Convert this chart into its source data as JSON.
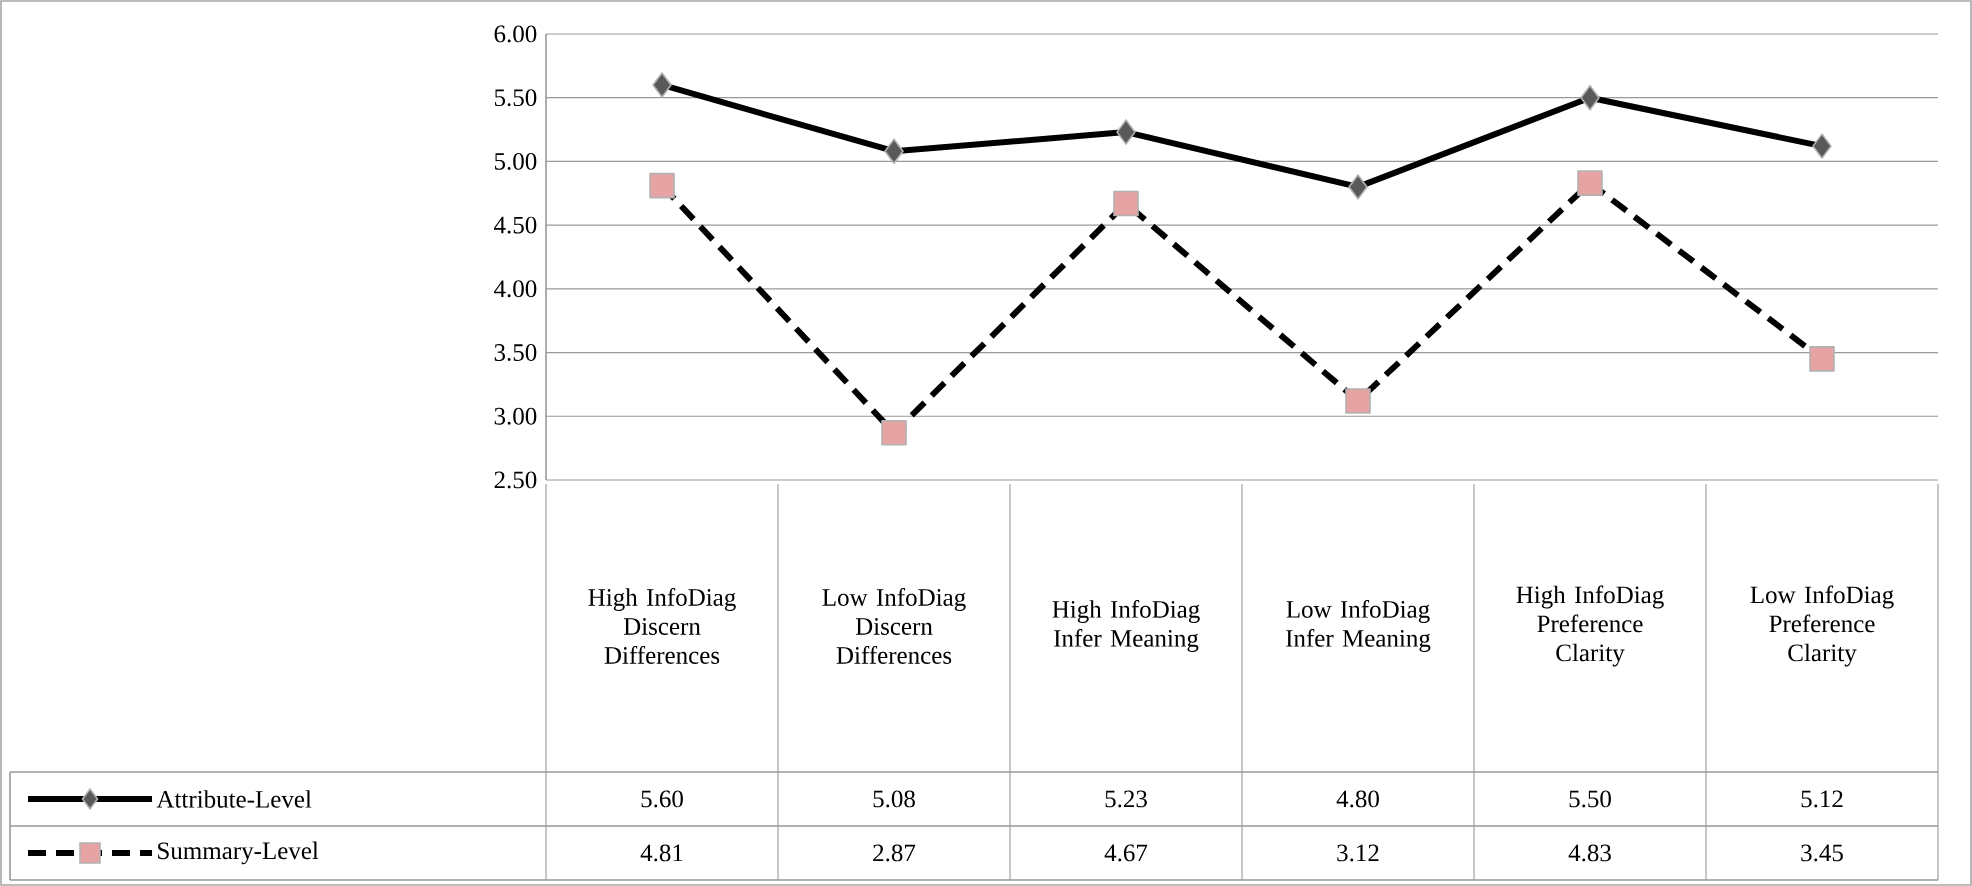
{
  "chart_data": {
    "type": "line",
    "categories": [
      "High InfoDiag Discern Differences",
      "Low InfoDiag Discern Differences",
      "High InfoDiag Infer Meaning",
      "Low InfoDiag Infer Meaning",
      "High InfoDiag Preference Clarity",
      "Low InfoDiag Preference Clarity"
    ],
    "series": [
      {
        "name": "Attribute-Level",
        "color": "#595959",
        "marker": "diamond",
        "line_style": "solid",
        "values": [
          5.6,
          5.08,
          5.23,
          4.8,
          5.5,
          5.12
        ],
        "value_labels": [
          "5.60",
          "5.08",
          "5.23",
          "4.80",
          "5.50",
          "5.12"
        ]
      },
      {
        "name": "Summary-Level",
        "color": "#e6a3a3",
        "marker": "square",
        "line_style": "dashed",
        "values": [
          4.81,
          2.87,
          4.67,
          3.12,
          4.83,
          3.45
        ],
        "value_labels": [
          "4.81",
          "2.87",
          "4.67",
          "3.12",
          "4.83",
          "3.45"
        ]
      }
    ],
    "ylim": [
      2.5,
      6.0
    ],
    "yticks": [
      {
        "value": 2.5,
        "label": "2.50"
      },
      {
        "value": 3.0,
        "label": "3.00"
      },
      {
        "value": 3.5,
        "label": "3.50"
      },
      {
        "value": 4.0,
        "label": "4.00"
      },
      {
        "value": 4.5,
        "label": "4.50"
      },
      {
        "value": 5.0,
        "label": "5.00"
      },
      {
        "value": 5.5,
        "label": "5.50"
      },
      {
        "value": 6.0,
        "label": "6.00"
      }
    ],
    "grid": "y",
    "legend": "bottom left"
  }
}
